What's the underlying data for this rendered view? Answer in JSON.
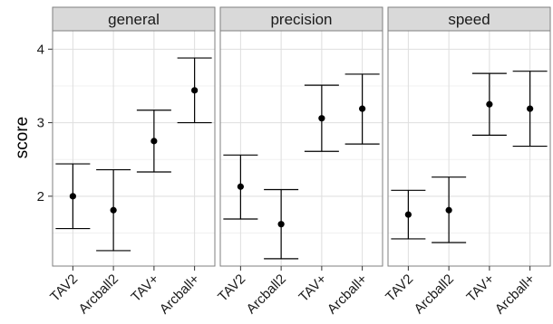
{
  "chart_data": {
    "type": "scatter",
    "representation": "point estimate with error bars, faceted",
    "title": "",
    "xlabel": "",
    "ylabel": "score",
    "ylim": [
      1.05,
      4.25
    ],
    "yticks": [
      2,
      3,
      4
    ],
    "grid": true,
    "legend": "none",
    "categories": [
      "TAV2",
      "Arcball2",
      "TAV+",
      "Arcball+"
    ],
    "panels": [
      {
        "name": "general",
        "points": [
          {
            "category": "TAV2",
            "y": 2.0,
            "ymin": 1.56,
            "ymax": 2.44
          },
          {
            "category": "Arcball2",
            "y": 1.81,
            "ymin": 1.26,
            "ymax": 2.36
          },
          {
            "category": "TAV+",
            "y": 2.75,
            "ymin": 2.33,
            "ymax": 3.17
          },
          {
            "category": "Arcball+",
            "y": 3.44,
            "ymin": 3.0,
            "ymax": 3.88
          }
        ]
      },
      {
        "name": "precision",
        "points": [
          {
            "category": "TAV2",
            "y": 2.13,
            "ymin": 1.69,
            "ymax": 2.56
          },
          {
            "category": "Arcball2",
            "y": 1.62,
            "ymin": 1.15,
            "ymax": 2.09
          },
          {
            "category": "TAV+",
            "y": 3.06,
            "ymin": 2.61,
            "ymax": 3.51
          },
          {
            "category": "Arcball+",
            "y": 3.19,
            "ymin": 2.71,
            "ymax": 3.66
          }
        ]
      },
      {
        "name": "speed",
        "points": [
          {
            "category": "TAV2",
            "y": 1.75,
            "ymin": 1.42,
            "ymax": 2.08
          },
          {
            "category": "Arcball2",
            "y": 1.81,
            "ymin": 1.37,
            "ymax": 2.26
          },
          {
            "category": "TAV+",
            "y": 3.25,
            "ymin": 2.83,
            "ymax": 3.67
          },
          {
            "category": "Arcball+",
            "y": 3.19,
            "ymin": 2.68,
            "ymax": 3.7
          }
        ]
      }
    ]
  },
  "colors": {
    "strip_fill": "#d9d9d9",
    "panel_border": "#7f7f7f",
    "grid_major": "#dedede",
    "grid_minor": "#f0f0f0",
    "marks": "#000000"
  }
}
